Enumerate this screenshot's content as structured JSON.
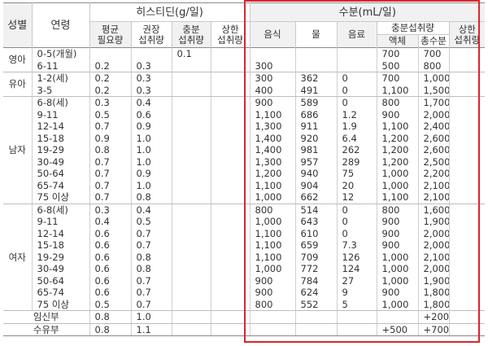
{
  "headers": {
    "sex": "성별",
    "age": "연령",
    "histidine_group": "히스티딘(g/일)",
    "hist_ear": "평균\n필요량",
    "hist_ear_l1": "평균",
    "hist_ear_l2": "필요량",
    "hist_rni_l1": "권장",
    "hist_rni_l2": "섭취량",
    "hist_ai_l1": "충분",
    "hist_ai_l2": "섭취량",
    "hist_ul_l1": "상한",
    "hist_ul_l2": "섭취량",
    "water_group": "수분(mL/일)",
    "food": "음식",
    "water": "물",
    "beverage": "음료",
    "ai_group": "충분섭취량",
    "liquid": "액체",
    "total": "총수분",
    "water_ul_l1": "상한",
    "water_ul_l2": "섭취량"
  },
  "groups": [
    {
      "sex": "영아",
      "rows": [
        {
          "age": "0-5(개월)",
          "ear": "",
          "rni": "",
          "ai": "0.1",
          "ul": "",
          "food": "",
          "water": "",
          "beverage": "",
          "liquid": "700",
          "total": "700",
          "wul": ""
        },
        {
          "age": "6-11",
          "ear": "0.2",
          "rni": "0.3",
          "ai": "",
          "ul": "",
          "food": "300",
          "water": "",
          "beverage": "",
          "liquid": "500",
          "total": "800",
          "wul": ""
        }
      ]
    },
    {
      "sex": "유아",
      "rows": [
        {
          "age": "1-2(세)",
          "ear": "0.2",
          "rni": "0.3",
          "ai": "",
          "ul": "",
          "food": "300",
          "water": "362",
          "beverage": "0",
          "liquid": "700",
          "total": "1,000",
          "wul": ""
        },
        {
          "age": "3-5",
          "ear": "0.2",
          "rni": "0.3",
          "ai": "",
          "ul": "",
          "food": "400",
          "water": "491",
          "beverage": "0",
          "liquid": "1,100",
          "total": "1,500",
          "wul": ""
        }
      ]
    },
    {
      "sex": "남자",
      "rows": [
        {
          "age": "6-8(세)",
          "ear": "0.3",
          "rni": "0.4",
          "ai": "",
          "ul": "",
          "food": "900",
          "water": "589",
          "beverage": "0",
          "liquid": "800",
          "total": "1,700",
          "wul": ""
        },
        {
          "age": "9-11",
          "ear": "0.5",
          "rni": "0.6",
          "ai": "",
          "ul": "",
          "food": "1,100",
          "water": "686",
          "beverage": "1.2",
          "liquid": "900",
          "total": "2,000",
          "wul": ""
        },
        {
          "age": "12-14",
          "ear": "0.7",
          "rni": "0.9",
          "ai": "",
          "ul": "",
          "food": "1,300",
          "water": "911",
          "beverage": "1.9",
          "liquid": "1,100",
          "total": "2,400",
          "wul": ""
        },
        {
          "age": "15-18",
          "ear": "0.9",
          "rni": "1.0",
          "ai": "",
          "ul": "",
          "food": "1,400",
          "water": "920",
          "beverage": "6.4",
          "liquid": "1,200",
          "total": "2,600",
          "wul": ""
        },
        {
          "age": "19-29",
          "ear": "0.8",
          "rni": "1.0",
          "ai": "",
          "ul": "",
          "food": "1,400",
          "water": "981",
          "beverage": "262",
          "liquid": "1,200",
          "total": "2,600",
          "wul": ""
        },
        {
          "age": "30-49",
          "ear": "0.7",
          "rni": "1.0",
          "ai": "",
          "ul": "",
          "food": "1,300",
          "water": "957",
          "beverage": "289",
          "liquid": "1,200",
          "total": "2,500",
          "wul": ""
        },
        {
          "age": "50-64",
          "ear": "0.7",
          "rni": "0.9",
          "ai": "",
          "ul": "",
          "food": "1,200",
          "water": "940",
          "beverage": "75",
          "liquid": "1,000",
          "total": "2,200",
          "wul": ""
        },
        {
          "age": "65-74",
          "ear": "0.7",
          "rni": "1.0",
          "ai": "",
          "ul": "",
          "food": "1,100",
          "water": "904",
          "beverage": "20",
          "liquid": "1,000",
          "total": "2,100",
          "wul": ""
        },
        {
          "age": "75 이상",
          "ear": "0.7",
          "rni": "0.8",
          "ai": "",
          "ul": "",
          "food": "1,000",
          "water": "662",
          "beverage": "12",
          "liquid": "1,100",
          "total": "2,100",
          "wul": ""
        }
      ]
    },
    {
      "sex": "여자",
      "rows": [
        {
          "age": "6-8(세)",
          "ear": "0.3",
          "rni": "0.4",
          "ai": "",
          "ul": "",
          "food": "800",
          "water": "514",
          "beverage": "0",
          "liquid": "800",
          "total": "1,600",
          "wul": ""
        },
        {
          "age": "9-11",
          "ear": "0.4",
          "rni": "0.5",
          "ai": "",
          "ul": "",
          "food": "1,000",
          "water": "643",
          "beverage": "0",
          "liquid": "900",
          "total": "1,900",
          "wul": ""
        },
        {
          "age": "12-14",
          "ear": "0.6",
          "rni": "0.7",
          "ai": "",
          "ul": "",
          "food": "1,100",
          "water": "610",
          "beverage": "0",
          "liquid": "900",
          "total": "2,000",
          "wul": ""
        },
        {
          "age": "15-18",
          "ear": "0.6",
          "rni": "0.7",
          "ai": "",
          "ul": "",
          "food": "1,100",
          "water": "659",
          "beverage": "7.3",
          "liquid": "900",
          "total": "2,000",
          "wul": ""
        },
        {
          "age": "19-29",
          "ear": "0.6",
          "rni": "0.8",
          "ai": "",
          "ul": "",
          "food": "1,100",
          "water": "709",
          "beverage": "126",
          "liquid": "1,000",
          "total": "2,100",
          "wul": ""
        },
        {
          "age": "30-49",
          "ear": "0.6",
          "rni": "0.8",
          "ai": "",
          "ul": "",
          "food": "1,000",
          "water": "772",
          "beverage": "124",
          "liquid": "1,000",
          "total": "2,000",
          "wul": ""
        },
        {
          "age": "50-64",
          "ear": "0.6",
          "rni": "0.7",
          "ai": "",
          "ul": "",
          "food": "900",
          "water": "784",
          "beverage": "27",
          "liquid": "1,000",
          "total": "1,900",
          "wul": ""
        },
        {
          "age": "65-74",
          "ear": "0.6",
          "rni": "0.7",
          "ai": "",
          "ul": "",
          "food": "900",
          "water": "624",
          "beverage": "9",
          "liquid": "900",
          "total": "1,800",
          "wul": ""
        },
        {
          "age": "75 이상",
          "ear": "0.5",
          "rni": "0.7",
          "ai": "",
          "ul": "",
          "food": "800",
          "water": "552",
          "beverage": "5",
          "liquid": "1,000",
          "total": "1,800",
          "wul": ""
        }
      ]
    }
  ],
  "special": [
    {
      "label": "임신부",
      "ear": "0.8",
      "rni": "1.0",
      "ai": "",
      "ul": "",
      "food": "",
      "water": "",
      "beverage": "",
      "liquid": "",
      "total": "+200",
      "wul": ""
    },
    {
      "label": "수유부",
      "ear": "0.8",
      "rni": "1.1",
      "ai": "",
      "ul": "",
      "food": "",
      "water": "",
      "beverage": "",
      "liquid": "+500",
      "total": "+700",
      "wul": ""
    }
  ],
  "highlight_color": "#d9262f"
}
